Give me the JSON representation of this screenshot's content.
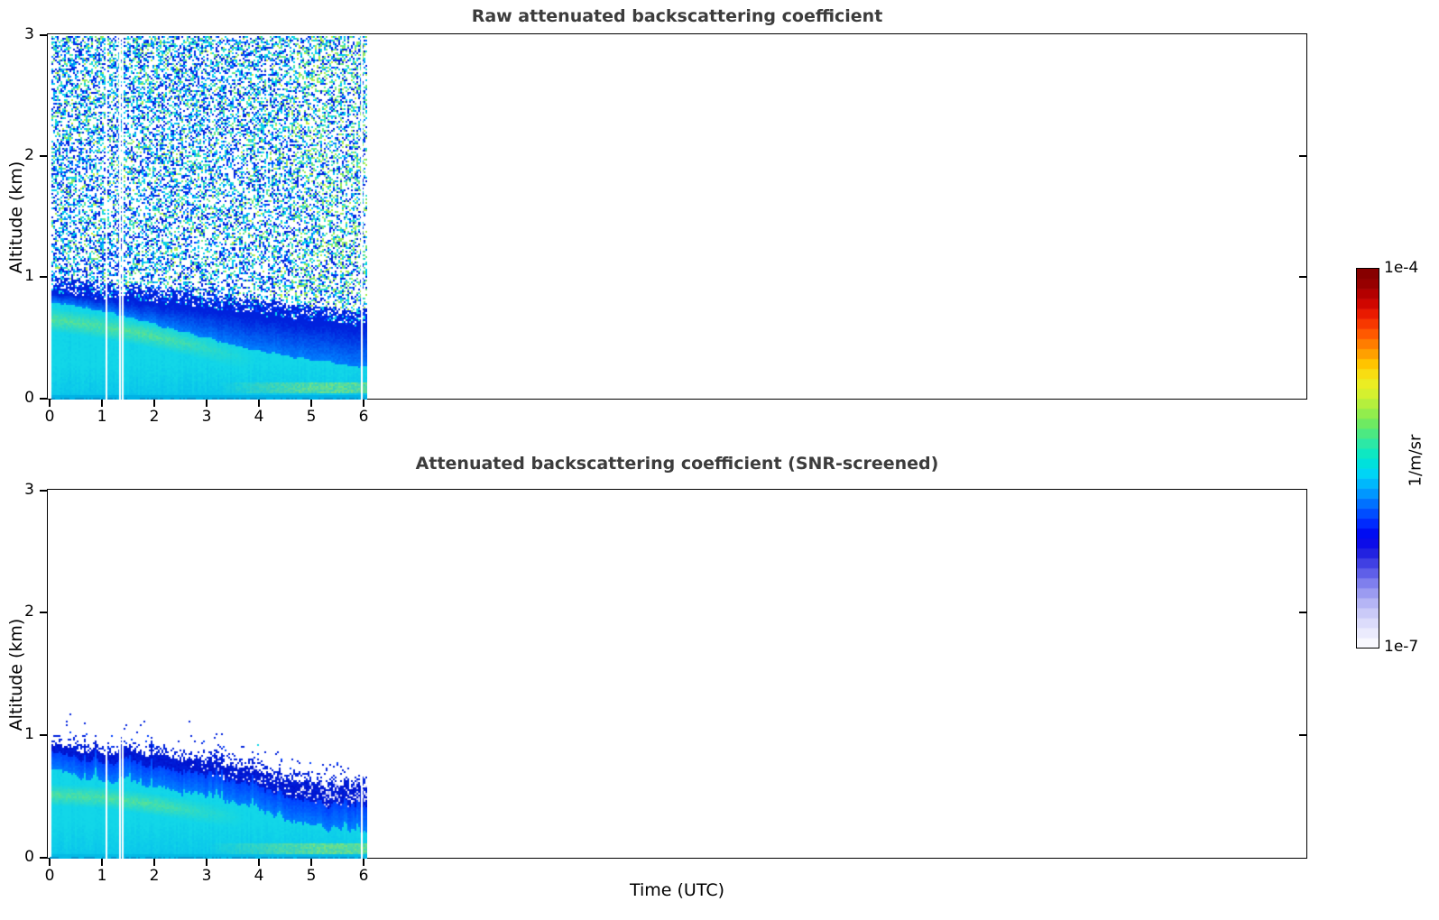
{
  "figure": {
    "background": "#ffffff",
    "title_color": "#3c3c3c",
    "text_color": "#000000",
    "spine_color": "#000000"
  },
  "colorbar": {
    "top_label": "1e-4",
    "bottom_label": "1e-7",
    "unit_label": "1/m/sr",
    "n_steps": 38,
    "stops_bottom_to_top": [
      "#ffffff",
      "#eaeafd",
      "#d2d2fa",
      "#b0b0f5",
      "#8585ee",
      "#5252e6",
      "#2222e0",
      "#0000ee",
      "#0030ff",
      "#0068ff",
      "#00a4ff",
      "#00d4f8",
      "#00e8d0",
      "#2fe9a4",
      "#62ea6a",
      "#9cee48",
      "#d2f132",
      "#f4ec1e",
      "#ffc400",
      "#ff8c00",
      "#ff5400",
      "#f02000",
      "#c80000",
      "#990000",
      "#7f0000"
    ]
  },
  "palette": {
    "deep_blue": "#0022dd",
    "blue": "#0040ff",
    "azure": "#0080ff",
    "sky": "#00b0f0",
    "cyan": "#12d7e8",
    "teal": "#2ee0cc",
    "spring": "#55e5a0",
    "green": "#72e678",
    "lime": "#a8ec50",
    "yellow_green": "#cdf03c",
    "lavender": "#aeb2f4",
    "pale_blue": "#d9dbfa",
    "low_cyan": "#00b4e4",
    "bottom_line": "#0894cc"
  },
  "noise_palette": [
    {
      "color": "#0022dd",
      "w": 0.3
    },
    {
      "color": "#0040ff",
      "w": 0.1
    },
    {
      "color": "#0080ff",
      "w": 0.1
    },
    {
      "color": "#00ccf0",
      "w": 0.22
    },
    {
      "color": "#2ee0cc",
      "w": 0.08
    },
    {
      "color": "#55e5a0",
      "w": 0.06
    },
    {
      "color": "#72e678",
      "w": 0.07
    },
    {
      "color": "#a8ec50",
      "w": 0.05
    },
    {
      "color": "#cdf03c",
      "w": 0.02
    }
  ],
  "chart_data": [
    {
      "type": "heatmap",
      "panel": "top",
      "title": "Raw attenuated backscattering coefficient",
      "ylabel": "Altitude (km)",
      "xlabel": "",
      "ylim": [
        0,
        3
      ],
      "yticks": [
        "0",
        "1",
        "2",
        "3"
      ],
      "ytick_values": [
        0,
        1,
        2,
        3
      ],
      "xticks": [
        "0",
        "1",
        "2",
        "3",
        "4",
        "5",
        "6"
      ],
      "xtick_values": [
        0,
        1,
        2,
        3,
        4,
        5,
        6
      ],
      "x_axis_range_hours": [
        0,
        24.1
      ],
      "data_time_range_hours": [
        0,
        6.05
      ],
      "gap_times_hours": [
        1.04,
        1.31,
        1.36,
        5.93
      ],
      "grid": false,
      "series": {
        "boundary_layer_top_km": {
          "t": [
            0,
            1,
            2,
            3,
            4,
            5,
            6
          ],
          "h": [
            0.88,
            0.85,
            0.8,
            0.75,
            0.7,
            0.66,
            0.62
          ]
        },
        "cyan_layer_top_km": {
          "t": [
            0,
            1,
            2,
            3,
            4,
            5,
            6
          ],
          "h": [
            0.8,
            0.74,
            0.62,
            0.5,
            0.4,
            0.33,
            0.27
          ]
        },
        "green_band_center_km": {
          "t": [
            0,
            1,
            2,
            3,
            4
          ],
          "h": [
            0.66,
            0.6,
            0.52,
            0.42,
            0.3
          ]
        },
        "near_surface_green_band_km": [
          0.05,
          0.14
        ]
      },
      "noise_region": {
        "description": "random speckle noise above boundary layer up to 3 km",
        "base_density": 0.47
      }
    },
    {
      "type": "heatmap",
      "panel": "bottom",
      "title": "Attenuated backscattering coefficient (SNR-screened)",
      "ylabel": "Altitude (km)",
      "xlabel": "Time (UTC)",
      "ylim": [
        0,
        3
      ],
      "yticks": [
        "0",
        "1",
        "2",
        "3"
      ],
      "ytick_values": [
        0,
        1,
        2,
        3
      ],
      "xticks": [
        "0",
        "1",
        "2",
        "3",
        "4",
        "5",
        "6"
      ],
      "xtick_values": [
        0,
        1,
        2,
        3,
        4,
        5,
        6
      ],
      "x_axis_range_hours": [
        0,
        24.1
      ],
      "data_time_range_hours": [
        0,
        6.03
      ],
      "gap_times_hours": [
        1.04,
        1.31,
        1.36,
        5.93
      ],
      "grid": false,
      "series": {
        "layer_top_km": {
          "t": [
            0,
            1,
            2,
            3,
            4,
            5,
            6
          ],
          "h": [
            0.93,
            0.9,
            0.84,
            0.78,
            0.71,
            0.64,
            0.58
          ]
        },
        "green_band_center_km": {
          "t": [
            0,
            1,
            2,
            3.5
          ],
          "h": [
            0.52,
            0.5,
            0.44,
            0.34
          ]
        },
        "near_surface_green_band_km": [
          0.04,
          0.13
        ],
        "deep_blue_edge_thickness_km": [
          0.06,
          0.17
        ],
        "blue_zone_thickness_km": [
          0.2,
          0.37
        ]
      },
      "noise_region": {
        "description": "screened: white above layer with sparse blue specks",
        "base_density": 0.003
      }
    }
  ]
}
